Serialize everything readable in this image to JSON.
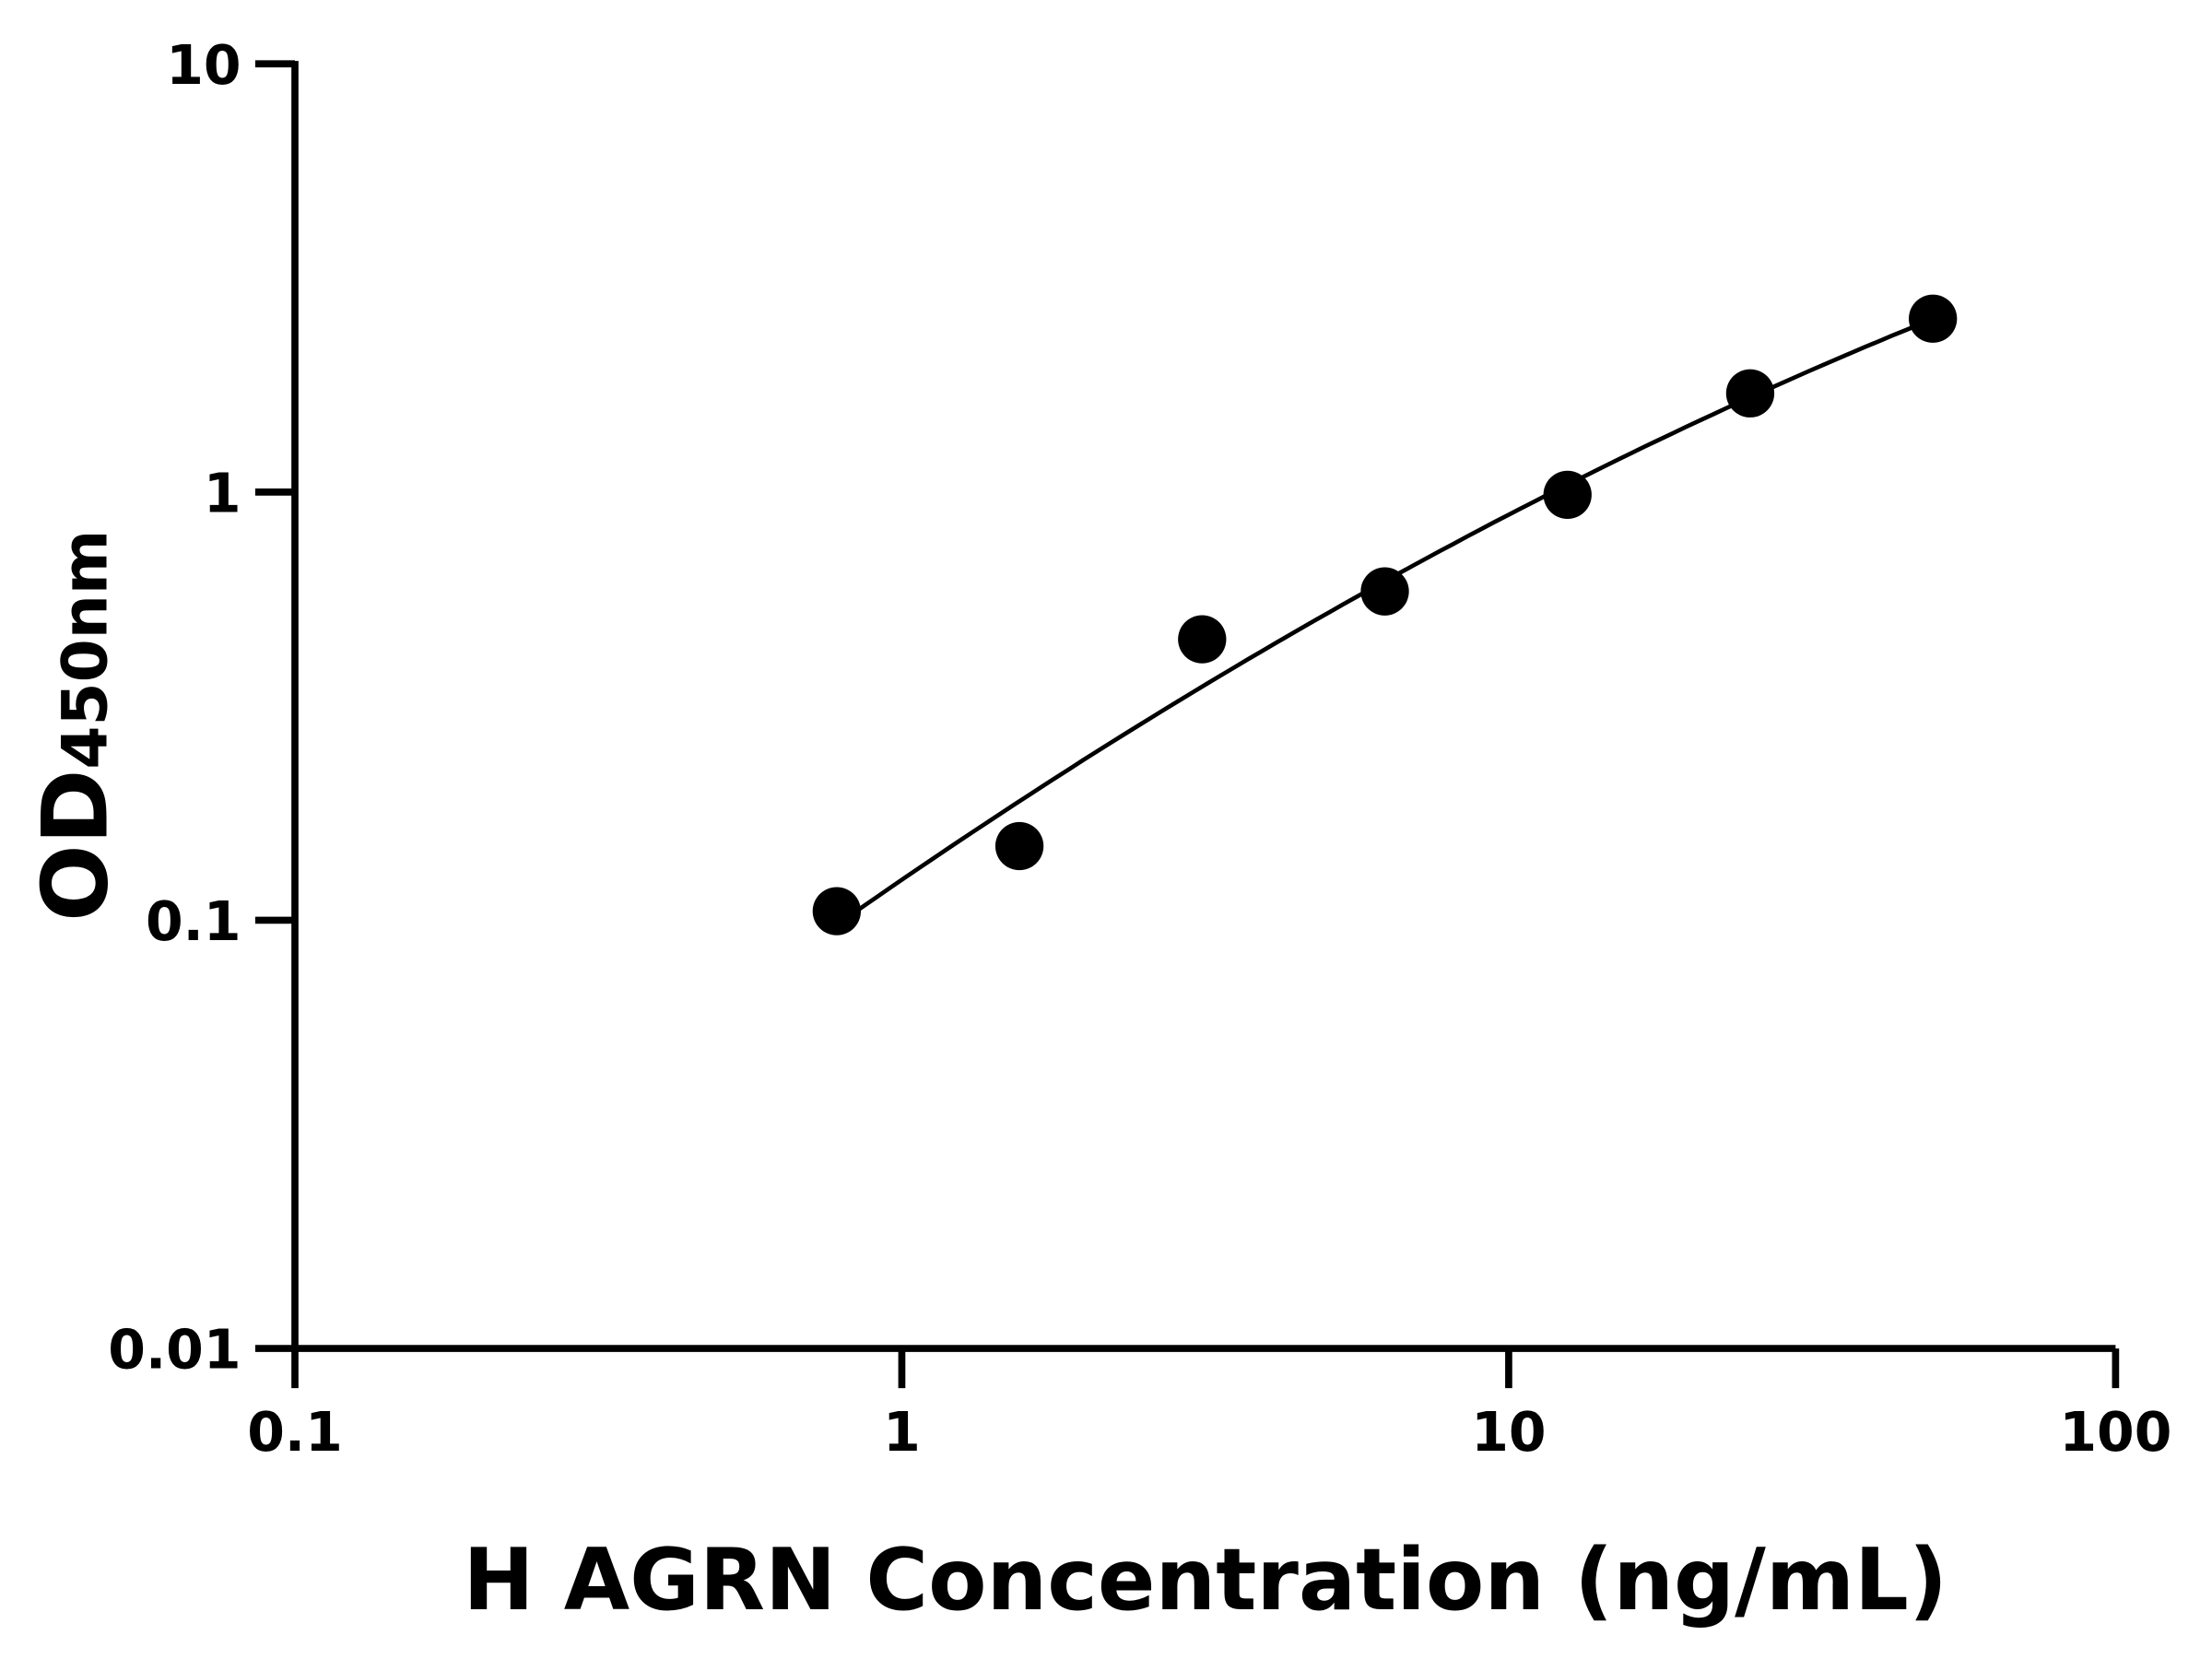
{
  "chart_data": {
    "type": "scatter",
    "title": "",
    "xlabel": "H AGRN Concentration (ng/mL)",
    "ylabel_main": "OD",
    "ylabel_sub": "450nm",
    "x_scale": "log",
    "y_scale": "log",
    "xlim": [
      0.1,
      100
    ],
    "ylim": [
      0.01,
      10
    ],
    "x_ticks": [
      {
        "value": 0.1,
        "label": "0.1"
      },
      {
        "value": 1,
        "label": "1"
      },
      {
        "value": 10,
        "label": "10"
      },
      {
        "value": 100,
        "label": "100"
      }
    ],
    "y_ticks": [
      {
        "value": 0.01,
        "label": "0.01"
      },
      {
        "value": 0.1,
        "label": "0.1"
      },
      {
        "value": 1,
        "label": "1"
      },
      {
        "value": 10,
        "label": "10"
      }
    ],
    "grid": false,
    "fit_curve": true,
    "color": "#000000",
    "points": [
      {
        "x": 0.78125,
        "y": 0.105
      },
      {
        "x": 1.5625,
        "y": 0.149
      },
      {
        "x": 3.125,
        "y": 0.453
      },
      {
        "x": 6.25,
        "y": 0.586
      },
      {
        "x": 12.5,
        "y": 0.985
      },
      {
        "x": 25,
        "y": 1.7
      },
      {
        "x": 50,
        "y": 2.54
      }
    ]
  }
}
